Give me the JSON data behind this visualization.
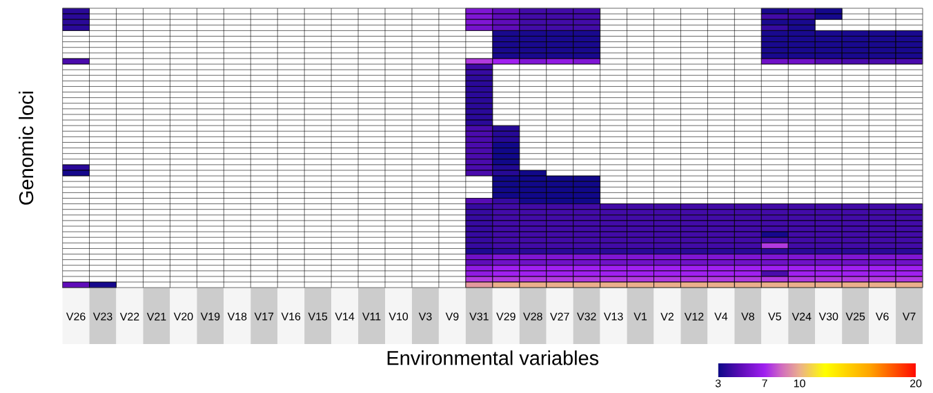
{
  "chart_data": {
    "type": "heatmap",
    "xlabel": "Environmental variables",
    "ylabel": "Genomic loci",
    "categories": [
      "V26",
      "V23",
      "V22",
      "V21",
      "V20",
      "V19",
      "V18",
      "V17",
      "V16",
      "V15",
      "V14",
      "V11",
      "V10",
      "V3",
      "V9",
      "V31",
      "V29",
      "V28",
      "V27",
      "V32",
      "V13",
      "V1",
      "V2",
      "V12",
      "V4",
      "V8",
      "V5",
      "V24",
      "V30",
      "V25",
      "V6",
      "V7"
    ],
    "y_categories": [
      null,
      null,
      null,
      null,
      null,
      null,
      null,
      null,
      null,
      null,
      null,
      null,
      null,
      null,
      null,
      null,
      null,
      null,
      null,
      null,
      null,
      null,
      null,
      null,
      null,
      null,
      null,
      null,
      null,
      null,
      null,
      null,
      null,
      null,
      null,
      null,
      null,
      null,
      null,
      null,
      null,
      null,
      null,
      null,
      null,
      null,
      null,
      null,
      null,
      null
    ],
    "clim": [
      3,
      20
    ],
    "cticks": [
      3,
      7,
      10,
      20
    ],
    "cells": [
      [
        3.7,
        null,
        null,
        null,
        null,
        null,
        null,
        null,
        null,
        null,
        null,
        null,
        null,
        null,
        null,
        6,
        5,
        4.3,
        4.3,
        4.3,
        null,
        null,
        null,
        null,
        null,
        null,
        3.3,
        4,
        3.2,
        null,
        null,
        null
      ],
      [
        3.7,
        null,
        null,
        null,
        null,
        null,
        null,
        null,
        null,
        null,
        null,
        null,
        null,
        null,
        null,
        6,
        5,
        4.3,
        4.3,
        4.3,
        null,
        null,
        null,
        null,
        null,
        null,
        4.3,
        4,
        3.2,
        null,
        null,
        null
      ],
      [
        3.7,
        null,
        null,
        null,
        null,
        null,
        null,
        null,
        null,
        null,
        null,
        null,
        null,
        null,
        null,
        6,
        5,
        4.3,
        4.3,
        4.3,
        null,
        null,
        null,
        null,
        null,
        null,
        3.3,
        3.3,
        null,
        null,
        null,
        null
      ],
      [
        3.7,
        null,
        null,
        null,
        null,
        null,
        null,
        null,
        null,
        null,
        null,
        null,
        null,
        null,
        null,
        5.7,
        5,
        4.3,
        4.3,
        4.3,
        null,
        null,
        null,
        null,
        null,
        null,
        4,
        3.3,
        null,
        null,
        null,
        null
      ],
      [
        null,
        null,
        null,
        null,
        null,
        null,
        null,
        null,
        null,
        null,
        null,
        null,
        null,
        null,
        null,
        null,
        3.3,
        3.3,
        3.3,
        3.3,
        null,
        null,
        null,
        null,
        null,
        null,
        3.3,
        3.3,
        3.3,
        3.3,
        3.3,
        3.3
      ],
      [
        null,
        null,
        null,
        null,
        null,
        null,
        null,
        null,
        null,
        null,
        null,
        null,
        null,
        null,
        null,
        null,
        3.3,
        3.3,
        3.3,
        3.3,
        null,
        null,
        null,
        null,
        null,
        null,
        3.3,
        3.3,
        3.3,
        3.3,
        3.3,
        3.3
      ],
      [
        null,
        null,
        null,
        null,
        null,
        null,
        null,
        null,
        null,
        null,
        null,
        null,
        null,
        null,
        null,
        null,
        3.3,
        3.3,
        3.3,
        3.3,
        null,
        null,
        null,
        null,
        null,
        null,
        3.3,
        3.3,
        3.3,
        3.3,
        3.3,
        3.3
      ],
      [
        null,
        null,
        null,
        null,
        null,
        null,
        null,
        null,
        null,
        null,
        null,
        null,
        null,
        null,
        null,
        null,
        3.3,
        3.3,
        3.3,
        3.3,
        null,
        null,
        null,
        null,
        null,
        null,
        3.3,
        3.3,
        3.3,
        3.3,
        3.3,
        3.3
      ],
      [
        null,
        null,
        null,
        null,
        null,
        null,
        null,
        null,
        null,
        null,
        null,
        null,
        null,
        null,
        null,
        null,
        3.3,
        3.3,
        3.3,
        3.3,
        null,
        null,
        null,
        null,
        null,
        null,
        3.3,
        3.3,
        3.3,
        3.3,
        3.3,
        3.3
      ],
      [
        4.5,
        null,
        null,
        null,
        null,
        null,
        null,
        null,
        null,
        null,
        null,
        null,
        null,
        null,
        null,
        7.5,
        7,
        6,
        6.5,
        6,
        null,
        null,
        null,
        null,
        null,
        null,
        5.5,
        5.5,
        4.8,
        4.5,
        4.5,
        4.5
      ],
      [
        null,
        null,
        null,
        null,
        null,
        null,
        null,
        null,
        null,
        null,
        null,
        null,
        null,
        null,
        null,
        4.2,
        null,
        null,
        null,
        null,
        null,
        null,
        null,
        null,
        null,
        null,
        null,
        null,
        null,
        null,
        null,
        null
      ],
      [
        null,
        null,
        null,
        null,
        null,
        null,
        null,
        null,
        null,
        null,
        null,
        null,
        null,
        null,
        null,
        4,
        null,
        null,
        null,
        null,
        null,
        null,
        null,
        null,
        null,
        null,
        null,
        null,
        null,
        null,
        null,
        null
      ],
      [
        null,
        null,
        null,
        null,
        null,
        null,
        null,
        null,
        null,
        null,
        null,
        null,
        null,
        null,
        null,
        3.8,
        null,
        null,
        null,
        null,
        null,
        null,
        null,
        null,
        null,
        null,
        null,
        null,
        null,
        null,
        null,
        null
      ],
      [
        null,
        null,
        null,
        null,
        null,
        null,
        null,
        null,
        null,
        null,
        null,
        null,
        null,
        null,
        null,
        3.7,
        null,
        null,
        null,
        null,
        null,
        null,
        null,
        null,
        null,
        null,
        null,
        null,
        null,
        null,
        null,
        null
      ],
      [
        null,
        null,
        null,
        null,
        null,
        null,
        null,
        null,
        null,
        null,
        null,
        null,
        null,
        null,
        null,
        3.7,
        null,
        null,
        null,
        null,
        null,
        null,
        null,
        null,
        null,
        null,
        null,
        null,
        null,
        null,
        null,
        null
      ],
      [
        null,
        null,
        null,
        null,
        null,
        null,
        null,
        null,
        null,
        null,
        null,
        null,
        null,
        null,
        null,
        3.7,
        null,
        null,
        null,
        null,
        null,
        null,
        null,
        null,
        null,
        null,
        null,
        null,
        null,
        null,
        null,
        null
      ],
      [
        null,
        null,
        null,
        null,
        null,
        null,
        null,
        null,
        null,
        null,
        null,
        null,
        null,
        null,
        null,
        3.7,
        null,
        null,
        null,
        null,
        null,
        null,
        null,
        null,
        null,
        null,
        null,
        null,
        null,
        null,
        null,
        null
      ],
      [
        null,
        null,
        null,
        null,
        null,
        null,
        null,
        null,
        null,
        null,
        null,
        null,
        null,
        null,
        null,
        3.7,
        null,
        null,
        null,
        null,
        null,
        null,
        null,
        null,
        null,
        null,
        null,
        null,
        null,
        null,
        null,
        null
      ],
      [
        null,
        null,
        null,
        null,
        null,
        null,
        null,
        null,
        null,
        null,
        null,
        null,
        null,
        null,
        null,
        3.7,
        null,
        null,
        null,
        null,
        null,
        null,
        null,
        null,
        null,
        null,
        null,
        null,
        null,
        null,
        null,
        null
      ],
      [
        null,
        null,
        null,
        null,
        null,
        null,
        null,
        null,
        null,
        null,
        null,
        null,
        null,
        null,
        null,
        3.7,
        null,
        null,
        null,
        null,
        null,
        null,
        null,
        null,
        null,
        null,
        null,
        null,
        null,
        null,
        null,
        null
      ],
      [
        null,
        null,
        null,
        null,
        null,
        null,
        null,
        null,
        null,
        null,
        null,
        null,
        null,
        null,
        null,
        3.7,
        null,
        null,
        null,
        null,
        null,
        null,
        null,
        null,
        null,
        null,
        null,
        null,
        null,
        null,
        null,
        null
      ],
      [
        null,
        null,
        null,
        null,
        null,
        null,
        null,
        null,
        null,
        null,
        null,
        null,
        null,
        null,
        null,
        4.5,
        3.6,
        null,
        null,
        null,
        null,
        null,
        null,
        null,
        null,
        null,
        null,
        null,
        null,
        null,
        null,
        null
      ],
      [
        null,
        null,
        null,
        null,
        null,
        null,
        null,
        null,
        null,
        null,
        null,
        null,
        null,
        null,
        null,
        4.5,
        3.6,
        null,
        null,
        null,
        null,
        null,
        null,
        null,
        null,
        null,
        null,
        null,
        null,
        null,
        null,
        null
      ],
      [
        null,
        null,
        null,
        null,
        null,
        null,
        null,
        null,
        null,
        null,
        null,
        null,
        null,
        null,
        null,
        4.5,
        3.6,
        null,
        null,
        null,
        null,
        null,
        null,
        null,
        null,
        null,
        null,
        null,
        null,
        null,
        null,
        null
      ],
      [
        null,
        null,
        null,
        null,
        null,
        null,
        null,
        null,
        null,
        null,
        null,
        null,
        null,
        null,
        null,
        4.5,
        3.1,
        null,
        null,
        null,
        null,
        null,
        null,
        null,
        null,
        null,
        null,
        null,
        null,
        null,
        null,
        null
      ],
      [
        null,
        null,
        null,
        null,
        null,
        null,
        null,
        null,
        null,
        null,
        null,
        null,
        null,
        null,
        null,
        4.5,
        3.1,
        null,
        null,
        null,
        null,
        null,
        null,
        null,
        null,
        null,
        null,
        null,
        null,
        null,
        null,
        null
      ],
      [
        null,
        null,
        null,
        null,
        null,
        null,
        null,
        null,
        null,
        null,
        null,
        null,
        null,
        null,
        null,
        4.5,
        3.1,
        null,
        null,
        null,
        null,
        null,
        null,
        null,
        null,
        null,
        null,
        null,
        null,
        null,
        null,
        null
      ],
      [
        null,
        null,
        null,
        null,
        null,
        null,
        null,
        null,
        null,
        null,
        null,
        null,
        null,
        null,
        null,
        4.5,
        3.1,
        null,
        null,
        null,
        null,
        null,
        null,
        null,
        null,
        null,
        null,
        null,
        null,
        null,
        null,
        null
      ],
      [
        3.7,
        null,
        null,
        null,
        null,
        null,
        null,
        null,
        null,
        null,
        null,
        null,
        null,
        null,
        null,
        4.5,
        3.5,
        null,
        null,
        null,
        null,
        null,
        null,
        null,
        null,
        null,
        null,
        null,
        null,
        null,
        null,
        null
      ],
      [
        3.2,
        null,
        null,
        null,
        null,
        null,
        null,
        null,
        null,
        null,
        null,
        null,
        null,
        null,
        null,
        4.5,
        3.6,
        3.1,
        null,
        null,
        null,
        null,
        null,
        null,
        null,
        null,
        null,
        null,
        null,
        null,
        null,
        null
      ],
      [
        null,
        null,
        null,
        null,
        null,
        null,
        null,
        null,
        null,
        null,
        null,
        null,
        null,
        null,
        null,
        null,
        3.1,
        3.1,
        3.1,
        3.1,
        null,
        null,
        null,
        null,
        null,
        null,
        null,
        null,
        null,
        null,
        null,
        null
      ],
      [
        null,
        null,
        null,
        null,
        null,
        null,
        null,
        null,
        null,
        null,
        null,
        null,
        null,
        null,
        null,
        null,
        3.1,
        3.1,
        3.1,
        3.1,
        null,
        null,
        null,
        null,
        null,
        null,
        null,
        null,
        null,
        null,
        null,
        null
      ],
      [
        null,
        null,
        null,
        null,
        null,
        null,
        null,
        null,
        null,
        null,
        null,
        null,
        null,
        null,
        null,
        null,
        3.1,
        3.1,
        3.1,
        3.1,
        null,
        null,
        null,
        null,
        null,
        null,
        null,
        null,
        null,
        null,
        null,
        null
      ],
      [
        null,
        null,
        null,
        null,
        null,
        null,
        null,
        null,
        null,
        null,
        null,
        null,
        null,
        null,
        null,
        null,
        3.1,
        3.1,
        3.1,
        3.1,
        null,
        null,
        null,
        null,
        null,
        null,
        null,
        null,
        null,
        null,
        null,
        null
      ],
      [
        null,
        null,
        null,
        null,
        null,
        null,
        null,
        null,
        null,
        null,
        null,
        null,
        null,
        null,
        null,
        4.8,
        4,
        3.2,
        3.1,
        3.1,
        null,
        null,
        null,
        null,
        null,
        null,
        null,
        null,
        null,
        null,
        null,
        null
      ],
      [
        null,
        null,
        null,
        null,
        null,
        null,
        null,
        null,
        null,
        null,
        null,
        null,
        null,
        null,
        null,
        4,
        4.3,
        4.3,
        4.3,
        4.3,
        4.3,
        4.3,
        4.3,
        4.3,
        4.3,
        4.3,
        4.3,
        4.3,
        4.3,
        4.3,
        4.3,
        4.3
      ],
      [
        null,
        null,
        null,
        null,
        null,
        null,
        null,
        null,
        null,
        null,
        null,
        null,
        null,
        null,
        null,
        4,
        4.3,
        4.3,
        4.3,
        4.3,
        4.3,
        4.3,
        4.3,
        4.3,
        4.3,
        4.3,
        4.3,
        4.3,
        4.3,
        4.3,
        4.3,
        4.3
      ],
      [
        null,
        null,
        null,
        null,
        null,
        null,
        null,
        null,
        null,
        null,
        null,
        null,
        null,
        null,
        null,
        4,
        4.3,
        4.3,
        4.3,
        4.3,
        4.3,
        4.3,
        4.3,
        4.3,
        4.3,
        4.3,
        4.3,
        4.3,
        4.3,
        4.3,
        4.3,
        4.3
      ],
      [
        null,
        null,
        null,
        null,
        null,
        null,
        null,
        null,
        null,
        null,
        null,
        null,
        null,
        null,
        null,
        4,
        4.3,
        4.3,
        4.3,
        4.3,
        4.3,
        4.3,
        4.3,
        4.3,
        4.3,
        4.3,
        4.3,
        4.3,
        4.3,
        4.3,
        4.3,
        4.3
      ],
      [
        null,
        null,
        null,
        null,
        null,
        null,
        null,
        null,
        null,
        null,
        null,
        null,
        null,
        null,
        null,
        4,
        4.3,
        4.3,
        4.3,
        4.3,
        4.3,
        4.3,
        4.3,
        4.3,
        4.3,
        4.3,
        4.3,
        4.3,
        4.3,
        4.3,
        4.3,
        4.3
      ],
      [
        null,
        null,
        null,
        null,
        null,
        null,
        null,
        null,
        null,
        null,
        null,
        null,
        null,
        null,
        null,
        4,
        4.3,
        4.3,
        4.3,
        4.3,
        4.3,
        4.3,
        4.3,
        4.3,
        4.3,
        4.3,
        3.2,
        4.3,
        4.3,
        4.3,
        4.3,
        4.3
      ],
      [
        null,
        null,
        null,
        null,
        null,
        null,
        null,
        null,
        null,
        null,
        null,
        null,
        null,
        null,
        null,
        4,
        4.3,
        4.3,
        4.3,
        4.3,
        4.3,
        4.3,
        4.3,
        4.3,
        4.3,
        4.3,
        4.3,
        4.3,
        4.3,
        4.3,
        4.3,
        4.3
      ],
      [
        null,
        null,
        null,
        null,
        null,
        null,
        null,
        null,
        null,
        null,
        null,
        null,
        null,
        null,
        null,
        4,
        4.3,
        4.3,
        4.3,
        4.3,
        4.3,
        4.3,
        4.3,
        4.3,
        4.3,
        4.3,
        7.5,
        4.3,
        4.3,
        4.3,
        4.3,
        4.3
      ],
      [
        null,
        null,
        null,
        null,
        null,
        null,
        null,
        null,
        null,
        null,
        null,
        null,
        null,
        null,
        null,
        3.4,
        3.7,
        3.7,
        3.7,
        3.7,
        3.7,
        3.7,
        3.7,
        3.7,
        3.7,
        3.7,
        3.7,
        3.7,
        3.7,
        3.7,
        3.7,
        3.7
      ],
      [
        null,
        null,
        null,
        null,
        null,
        null,
        null,
        null,
        null,
        null,
        null,
        null,
        null,
        null,
        null,
        5.5,
        6,
        6,
        6,
        6,
        6,
        6,
        6,
        6,
        6,
        6,
        6,
        6,
        6,
        6,
        6,
        6
      ],
      [
        null,
        null,
        null,
        null,
        null,
        null,
        null,
        null,
        null,
        null,
        null,
        null,
        null,
        null,
        null,
        5,
        5.5,
        5.5,
        5.5,
        5.5,
        5.5,
        5.5,
        5.5,
        5.5,
        5.5,
        5.5,
        5.5,
        5.5,
        5.5,
        5.5,
        5.5,
        5.5
      ],
      [
        null,
        null,
        null,
        null,
        null,
        null,
        null,
        null,
        null,
        null,
        null,
        null,
        null,
        null,
        null,
        6.5,
        7,
        7,
        7,
        7,
        7,
        7,
        7,
        7,
        7,
        7,
        7,
        7,
        7,
        7,
        7,
        7
      ],
      [
        null,
        null,
        null,
        null,
        null,
        null,
        null,
        null,
        null,
        null,
        null,
        null,
        null,
        null,
        null,
        6.5,
        7,
        7,
        7,
        7,
        7,
        7,
        7,
        7,
        7,
        7,
        4.5,
        7,
        7,
        7,
        7,
        7
      ],
      [
        null,
        null,
        null,
        null,
        null,
        null,
        null,
        null,
        null,
        null,
        null,
        null,
        null,
        null,
        null,
        7.5,
        7.5,
        7.5,
        7.5,
        7.5,
        7.5,
        7.5,
        7.5,
        7.5,
        7.5,
        7.5,
        7.5,
        7.5,
        7.5,
        7.5,
        7.5,
        7.5
      ],
      [
        5,
        3.2,
        null,
        null,
        null,
        null,
        null,
        null,
        null,
        null,
        null,
        null,
        null,
        null,
        null,
        9.5,
        10,
        10,
        10,
        10,
        10,
        10,
        10,
        10,
        10,
        10,
        10,
        10,
        10,
        10,
        10,
        10
      ]
    ]
  }
}
